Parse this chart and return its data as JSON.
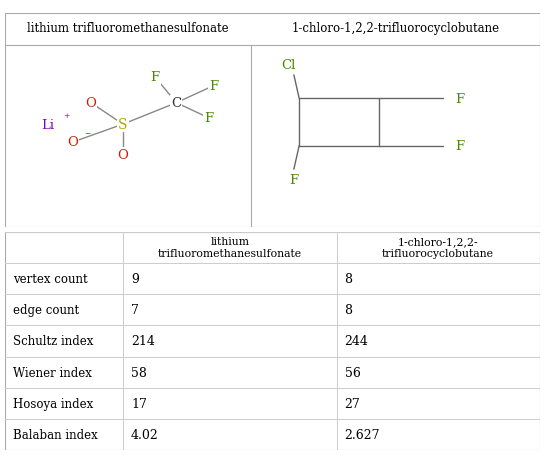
{
  "col1_header": "lithium trifluoromethanesulfonate",
  "col2_header": "1-chloro-1,2,2-trifluorocyclobutane",
  "table_col1_header": "lithium\ntrifluoromethanesulfonate",
  "table_col2_header": "1-chloro-1,2,2-\ntrifluorocyclobutane",
  "row_labels": [
    "vertex count",
    "edge count",
    "Schultz index",
    "Wiener index",
    "Hosoya index",
    "Balaban index"
  ],
  "col1_values": [
    "9",
    "7",
    "214",
    "58",
    "17",
    "4.02"
  ],
  "col2_values": [
    "8",
    "8",
    "244",
    "56",
    "27",
    "2.627"
  ],
  "bg_color": "#ffffff",
  "green_color": "#4a8a00",
  "red_color": "#cc2200",
  "purple_color": "#8800bb",
  "sulfur_color": "#aaaa00",
  "bond_color": "#888888",
  "molecule1_title": "lithium trifluoromethanesulfonate",
  "molecule2_title": "1-chloro-1,2,2-trifluorocyclobutane"
}
